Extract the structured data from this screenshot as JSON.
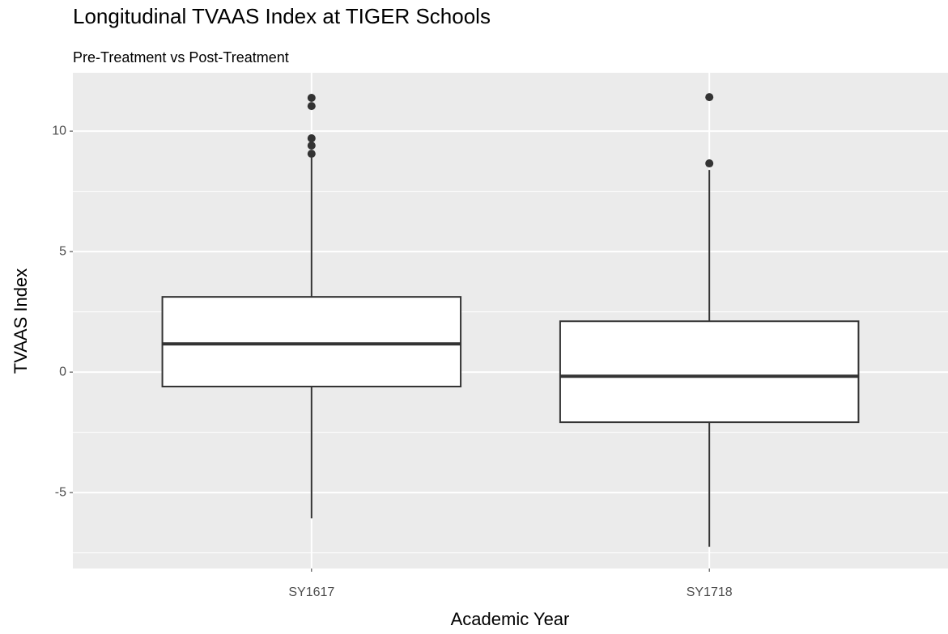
{
  "chart_data": {
    "type": "box",
    "title": "Longitudinal TVAAS Index at TIGER Schools",
    "subtitle": "Pre-Treatment vs Post-Treatment",
    "x_label": "Academic Year",
    "y_label": "TVAAS Index",
    "categories": [
      "SY1617",
      "SY1718"
    ],
    "boxes": [
      {
        "min": -6.07,
        "q1": -0.6,
        "median": 1.17,
        "q3": 3.12,
        "max": 8.9,
        "outliers": [
          11.38,
          11.04,
          9.7,
          9.4,
          9.06
        ]
      },
      {
        "min": -7.25,
        "q1": -2.08,
        "median": -0.17,
        "q3": 2.11,
        "max": 8.39,
        "outliers": [
          11.41,
          8.66
        ]
      }
    ],
    "ylim": [
      -8.15,
      12.42
    ],
    "yticks": [
      -5,
      0,
      5,
      10
    ],
    "yminorticks": [
      -7.5,
      -2.5,
      2.5,
      7.5
    ],
    "grid": true,
    "box_fill": "#ffffff",
    "line_color": "#333333",
    "panel_color": "#ebebeb"
  }
}
